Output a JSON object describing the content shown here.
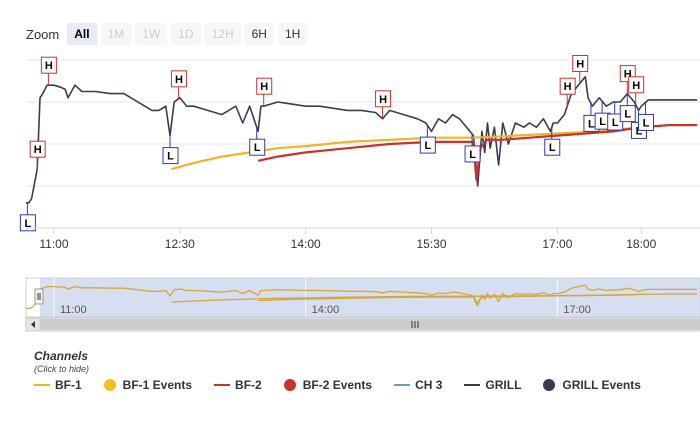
{
  "range_selector": {
    "zoom_label": "Zoom",
    "buttons": [
      {
        "label": "All",
        "state": "active"
      },
      {
        "label": "1M",
        "state": "disabled"
      },
      {
        "label": "1W",
        "state": "disabled"
      },
      {
        "label": "1D",
        "state": "disabled"
      },
      {
        "label": "12H",
        "state": "disabled"
      },
      {
        "label": "6H",
        "state": "enabled"
      },
      {
        "label": "1H",
        "state": "enabled"
      }
    ]
  },
  "legend": {
    "title": "Channels",
    "subtitle": "(Click to hide)",
    "items": [
      {
        "label": "BF-1",
        "symbol": "line",
        "color": "#f0b429"
      },
      {
        "label": "BF-1 Events",
        "symbol": "dot",
        "color": "#f5bd1f"
      },
      {
        "label": "BF-2",
        "symbol": "line",
        "color": "#c8332b"
      },
      {
        "label": "BF-2 Events",
        "symbol": "dot",
        "color": "#c8332b"
      },
      {
        "label": "CH 3",
        "symbol": "line",
        "color": "#6c9ab0"
      },
      {
        "label": "GRILL",
        "symbol": "line",
        "color": "#3a3d4f"
      },
      {
        "label": "GRILL Events",
        "symbol": "dot",
        "color": "#363a52"
      }
    ]
  },
  "chart_data": {
    "type": "line",
    "x_axis": {
      "type": "datetime",
      "ticks": [
        "11:00",
        "12:30",
        "14:00",
        "15:30",
        "17:00",
        "18:00"
      ],
      "range": [
        "10:40",
        "18:42"
      ]
    },
    "y_axis": {
      "labels": "none",
      "grid": true
    },
    "series": [
      {
        "name": "GRILL",
        "color": "#3a3d4f",
        "x": [
          "10:40",
          "10:42",
          "10:44",
          "10:48",
          "10:50",
          "10:52",
          "10:55",
          "11:00",
          "11:05",
          "11:08",
          "11:10",
          "11:15",
          "11:20",
          "11:30",
          "11:40",
          "11:50",
          "12:00",
          "12:10",
          "12:15",
          "12:20",
          "12:23",
          "12:26",
          "12:30",
          "12:35",
          "12:40",
          "12:50",
          "13:00",
          "13:10",
          "13:15",
          "13:20",
          "13:26",
          "13:28",
          "13:30",
          "13:35",
          "13:40",
          "13:50",
          "14:00",
          "14:10",
          "14:20",
          "14:30",
          "14:40",
          "14:50",
          "14:55",
          "15:00",
          "15:10",
          "15:20",
          "15:26",
          "15:28",
          "15:30",
          "15:35",
          "15:40",
          "15:45",
          "15:50",
          "15:55",
          "16:00",
          "16:03",
          "16:06",
          "16:08",
          "16:10",
          "16:12",
          "16:15",
          "16:18",
          "16:21",
          "16:25",
          "16:30",
          "16:36",
          "16:40",
          "16:45",
          "16:50",
          "16:55",
          "16:57",
          "17:00",
          "17:05",
          "17:08",
          "17:10",
          "17:15",
          "17:20",
          "17:22",
          "17:25",
          "17:30",
          "17:35",
          "17:40",
          "17:45",
          "17:50",
          "17:55",
          "17:58",
          "18:00",
          "18:05",
          "18:10",
          "18:20",
          "18:30",
          "18:40"
        ],
        "values": [
          62,
          62,
          64,
          78,
          112,
          114,
          118,
          118,
          117,
          116,
          112,
          118,
          115,
          115,
          114,
          114,
          110,
          106,
          106,
          108,
          94,
          110,
          112,
          108,
          108,
          106,
          104,
          108,
          100,
          108,
          96,
          108,
          108,
          109,
          110,
          109,
          108,
          108,
          107,
          106,
          106,
          105,
          102,
          106,
          104,
          102,
          100,
          98,
          96,
          102,
          100,
          104,
          102,
          98,
          94,
          70,
          96,
          86,
          100,
          88,
          98,
          80,
          100,
          90,
          100,
          98,
          100,
          98,
          102,
          96,
          100,
          100,
          104,
          110,
          114,
          118,
          122,
          112,
          108,
          112,
          108,
          110,
          110,
          114,
          110,
          106,
          108,
          111,
          111,
          111,
          111,
          111
        ]
      },
      {
        "name": "BF-1",
        "color": "#f0b429",
        "x": [
          "12:24",
          "12:40",
          "13:00",
          "13:20",
          "13:40",
          "14:00",
          "14:30",
          "15:00",
          "15:30",
          "16:00",
          "16:30",
          "17:00",
          "17:30",
          "18:00"
        ],
        "values": [
          78,
          81,
          84,
          86,
          88,
          89,
          91,
          92,
          93,
          93,
          94,
          95,
          96,
          98
        ]
      },
      {
        "name": "BF-2",
        "color": "#c8332b",
        "x": [
          "13:26",
          "13:40",
          "14:00",
          "14:30",
          "15:00",
          "15:30",
          "16:00",
          "16:02",
          "16:05",
          "16:08",
          "16:10",
          "16:20",
          "16:40",
          "17:00",
          "17:20",
          "17:40",
          "18:00",
          "18:20",
          "18:40"
        ],
        "values": [
          82,
          84,
          86,
          88,
          90,
          91,
          91,
          73,
          88,
          91,
          92,
          92,
          93,
          94,
          95,
          96,
          98,
          99,
          99
        ]
      }
    ],
    "events": [
      {
        "series": "GRILL",
        "label": "L",
        "time": "10:41"
      },
      {
        "series": "BF-2",
        "label": "H",
        "time": "10:48"
      },
      {
        "series": "BF-2",
        "label": "H",
        "time": "10:56"
      },
      {
        "series": "GRILL",
        "label": "L",
        "time": "12:23"
      },
      {
        "series": "BF-2",
        "label": "H",
        "time": "12:29"
      },
      {
        "series": "GRILL",
        "label": "L",
        "time": "13:25"
      },
      {
        "series": "BF-2",
        "label": "H",
        "time": "13:30"
      },
      {
        "series": "BF-2",
        "label": "H",
        "time": "14:55"
      },
      {
        "series": "GRILL",
        "label": "L",
        "time": "15:27"
      },
      {
        "series": "GRILL",
        "label": "L",
        "time": "15:59"
      },
      {
        "series": "GRILL",
        "label": "L",
        "time": "16:56"
      },
      {
        "series": "BF-2",
        "label": "H",
        "time": "17:07"
      },
      {
        "series": "BF-2",
        "label": "H",
        "time": "17:16"
      },
      {
        "series": "GRILL",
        "label": "L",
        "time": "17:24"
      },
      {
        "series": "GRILL",
        "label": "L",
        "time": "17:32"
      },
      {
        "series": "GRILL",
        "label": "L",
        "time": "17:41"
      },
      {
        "series": "GRILL",
        "label": "L",
        "time": "17:50"
      },
      {
        "series": "GRILL",
        "label": "L",
        "time": "17:58"
      },
      {
        "series": "BF-2",
        "label": "H",
        "time": "17:50"
      },
      {
        "series": "BF-2",
        "label": "H",
        "time": "17:56"
      },
      {
        "series": "GRILL",
        "label": "L",
        "time": "18:03"
      }
    ],
    "navigator": {
      "ticks": [
        "11:00",
        "14:00",
        "17:00"
      ],
      "series_color": "#d4a73c"
    }
  }
}
